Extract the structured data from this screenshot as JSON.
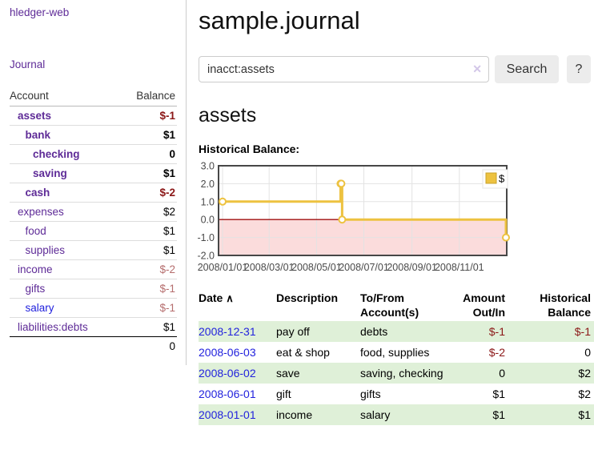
{
  "app": {
    "brand": "hledger-web"
  },
  "sidebar": {
    "nav": {
      "journal": "Journal"
    },
    "accounts": {
      "header_account": "Account",
      "header_balance": "Balance",
      "rows": [
        {
          "name": "assets",
          "balance": "$-1",
          "level": 1,
          "bold": true,
          "balance_style": "neg-strong",
          "link_color": "purple"
        },
        {
          "name": "bank",
          "balance": "$1",
          "level": 2,
          "bold": true,
          "balance_style": "pos",
          "link_color": "purple"
        },
        {
          "name": "checking",
          "balance": "0",
          "level": 3,
          "bold": true,
          "balance_style": "pos",
          "link_color": "purple"
        },
        {
          "name": "saving",
          "balance": "$1",
          "level": 3,
          "bold": true,
          "balance_style": "pos",
          "link_color": "purple"
        },
        {
          "name": "cash",
          "balance": "$-2",
          "level": 2,
          "bold": true,
          "balance_style": "neg-strong",
          "link_color": "purple"
        },
        {
          "name": "expenses",
          "balance": "$2",
          "level": 1,
          "bold": false,
          "balance_style": "pos",
          "link_color": "purple"
        },
        {
          "name": "food",
          "balance": "$1",
          "level": 2,
          "bold": false,
          "balance_style": "pos",
          "link_color": "purple"
        },
        {
          "name": "supplies",
          "balance": "$1",
          "level": 2,
          "bold": false,
          "balance_style": "pos",
          "link_color": "purple"
        },
        {
          "name": "income",
          "balance": "$-2",
          "level": 1,
          "bold": false,
          "balance_style": "neg-soft",
          "link_color": "purple"
        },
        {
          "name": "gifts",
          "balance": "$-1",
          "level": 2,
          "bold": false,
          "balance_style": "neg-soft",
          "link_color": "purple"
        },
        {
          "name": "salary",
          "balance": "$-1",
          "level": 2,
          "bold": false,
          "balance_style": "neg-soft",
          "link_color": "blue"
        },
        {
          "name": "liabilities:debts",
          "balance": "$1",
          "level": 1,
          "bold": false,
          "balance_style": "pos",
          "link_color": "purple"
        }
      ],
      "total": "0"
    }
  },
  "main": {
    "title": "sample.journal",
    "search": {
      "value": "inacct:assets",
      "clear_icon": "✕",
      "button": "Search",
      "help_button": "?"
    },
    "account_heading": "assets",
    "chart_heading": "Historical Balance:"
  },
  "chart_data": {
    "type": "line",
    "step": true,
    "title": "Historical Balance",
    "legend": [
      {
        "label": "$",
        "color": "#edc240"
      }
    ],
    "x": [
      "2008-01-01",
      "2008-06-01",
      "2008-06-02",
      "2008-06-03",
      "2008-12-31"
    ],
    "series": [
      {
        "name": "$",
        "values": [
          1,
          2,
          2,
          0,
          -1
        ]
      }
    ],
    "x_ticks": [
      "2008/01/01",
      "2008/03/01",
      "2008/05/01",
      "2008/07/01",
      "2008/09/01",
      "2008/11/01"
    ],
    "y_ticks": [
      "3.0",
      "2.0",
      "1.0",
      "0.0",
      "-1.0",
      "-2.0"
    ],
    "ylim": [
      -2,
      3
    ],
    "xlim": [
      "2008-01-01",
      "2008-12-31"
    ],
    "grid": true,
    "legend_position": "top-right",
    "colors": {
      "line": "#edc240",
      "marker_fill": "#ffffff",
      "negative_region": "#fbdcdc",
      "zero_line": "#a01010",
      "grid": "#e3e3e3",
      "border": "#474747",
      "tick_text": "#4a4a4a"
    }
  },
  "transactions": {
    "sort_icon": "∧",
    "headers": [
      {
        "label": "Date"
      },
      {
        "label": "Description"
      },
      {
        "label": "To/From Account(s)"
      },
      {
        "label": "Amount Out/In"
      },
      {
        "label": "Historical Balance"
      }
    ],
    "rows": [
      {
        "date": "2008-12-31",
        "description": "pay off",
        "accounts": "debts",
        "amount": "$-1",
        "balance": "$-1",
        "amount_neg": true,
        "balance_neg": true,
        "highlight": true
      },
      {
        "date": "2008-06-03",
        "description": "eat & shop",
        "accounts": "food, supplies",
        "amount": "$-2",
        "balance": "0",
        "amount_neg": true,
        "balance_neg": false,
        "highlight": false
      },
      {
        "date": "2008-06-02",
        "description": "save",
        "accounts": "saving, checking",
        "amount": "0",
        "balance": "$2",
        "amount_neg": false,
        "balance_neg": false,
        "highlight": true
      },
      {
        "date": "2008-06-01",
        "description": "gift",
        "accounts": "gifts",
        "amount": "$1",
        "balance": "$2",
        "amount_neg": false,
        "balance_neg": false,
        "highlight": false
      },
      {
        "date": "2008-01-01",
        "description": "income",
        "accounts": "salary",
        "amount": "$1",
        "balance": "$1",
        "amount_neg": false,
        "balance_neg": false,
        "highlight": true
      }
    ]
  }
}
